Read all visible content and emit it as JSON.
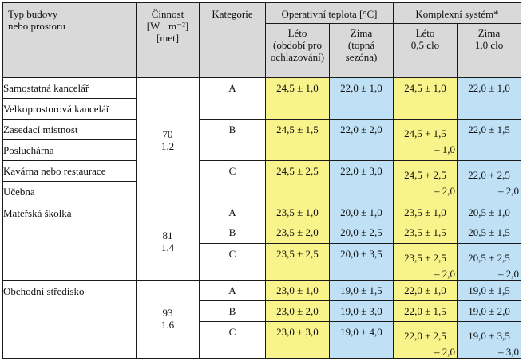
{
  "header": {
    "col1_line1": "Typ budovy",
    "col1_line2": "nebo prostoru",
    "col2_line1": "Činnost",
    "col2_line2": "[W · m⁻²]",
    "col2_line3": "[met]",
    "col3": "Kategorie",
    "col4": "Operativní teplota [°C]",
    "col5": "Komplexní systém*",
    "sub1_line1": "Léto",
    "sub1_line2": "(období pro",
    "sub1_line3": "ochlazování)",
    "sub2_line1": "Zima",
    "sub2_line2": "(topná",
    "sub2_line3": "sezóna)",
    "sub3_line1": "Léto",
    "sub3_line2": "0,5 clo",
    "sub4_line1": "Zima",
    "sub4_line2": "1,0 clo"
  },
  "groups": [
    {
      "names": [
        "Samostatná kancelář",
        "Velkoprostorová kancelář",
        "Zasedací místnost",
        "Posluchárna",
        "Kavárna nebo restaurace",
        "Učebna"
      ],
      "activity_w": "70",
      "activity_met": "1.2",
      "rows": [
        {
          "cat": "A",
          "op_summer": "24,5 ± 1,0",
          "op_winter": "22,0 ± 1,0",
          "cx_summer": "24,5 ± 1,0",
          "cx_summer_2": "",
          "cx_winter": "22,0 ± 1,0",
          "cx_winter_2": ""
        },
        {
          "cat": "B",
          "op_summer": "24,5 ± 1,5",
          "op_winter": "22,0 ± 2,0",
          "cx_summer": "24,5 + 1,5",
          "cx_summer_2": "– 1,0",
          "cx_winter": "22,0 ± 1,5",
          "cx_winter_2": ""
        },
        {
          "cat": "C",
          "op_summer": "24,5 ± 2,5",
          "op_winter": "22,0 ± 3,0",
          "cx_summer": "24,5 + 2,5",
          "cx_summer_2": "– 2,0",
          "cx_winter": "22,0 + 2,5",
          "cx_winter_2": "– 2,0"
        }
      ]
    },
    {
      "names": [
        "Mateřská školka"
      ],
      "activity_w": "81",
      "activity_met": "1.4",
      "rows": [
        {
          "cat": "A",
          "op_summer": "23,5 ± 1,0",
          "op_winter": "20,0 ± 1,0",
          "cx_summer": "23,5 ± 1,0",
          "cx_summer_2": "",
          "cx_winter": "20,5 ± 1,0",
          "cx_winter_2": ""
        },
        {
          "cat": "B",
          "op_summer": "23,5 ± 2,0",
          "op_winter": "20,0 ± 2,5",
          "cx_summer": "23,5 ± 1,5",
          "cx_summer_2": "",
          "cx_winter": "20,5 ± 1,5",
          "cx_winter_2": ""
        },
        {
          "cat": "C",
          "op_summer": "23,5 ± 2,5",
          "op_winter": "20,0 ± 3,5",
          "cx_summer": "23,5 + 2,5",
          "cx_summer_2": "– 2,0",
          "cx_winter": "20,5 + 2,5",
          "cx_winter_2": "– 2,0"
        }
      ]
    },
    {
      "names": [
        "Obchodní středisko"
      ],
      "activity_w": "93",
      "activity_met": "1.6",
      "rows": [
        {
          "cat": "A",
          "op_summer": "23,0 ± 1,0",
          "op_winter": "19,0 ± 1,5",
          "cx_summer": "22,0 ± 1,0",
          "cx_summer_2": "",
          "cx_winter": "19,0 ± 1,5",
          "cx_winter_2": ""
        },
        {
          "cat": "B",
          "op_summer": "23,0 ± 2,0",
          "op_winter": "19,0 ± 3,0",
          "cx_summer": "22,0 ± 1,5",
          "cx_summer_2": "",
          "cx_winter": "19,0 ± 2,0",
          "cx_winter_2": ""
        },
        {
          "cat": "C",
          "op_summer": "23,0 ± 3,0",
          "op_winter": "19,0 ± 4,0",
          "cx_summer": "22,0 + 2,5",
          "cx_summer_2": "– 2,0",
          "cx_winter": "19,0 + 3,5",
          "cx_winter_2": "– 3,0"
        }
      ]
    }
  ],
  "colors": {
    "header": "#d9d9d9",
    "yellow": "#f8f38a",
    "blue": "#bfe0f5"
  }
}
